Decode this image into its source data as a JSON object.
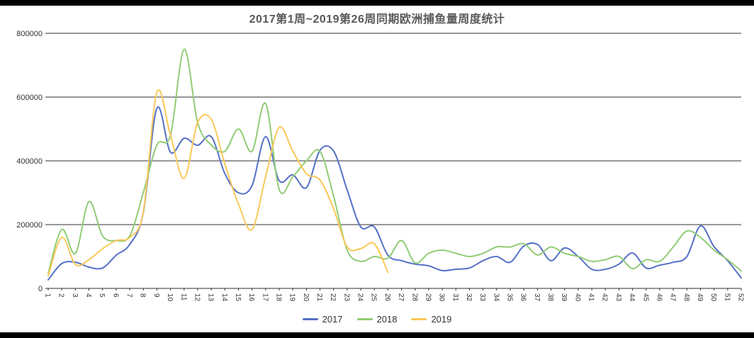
{
  "page": {
    "background": "#ffffff",
    "frame_color": "#000000"
  },
  "chart_data": {
    "type": "line",
    "title": "2017第1周~2019第26周同期欧洲捕鱼量周度统计",
    "title_color": "#595959",
    "text_color": "#333333",
    "grid_color": "#2f2f2f",
    "grid": true,
    "smooth": true,
    "legend_position": "bottom",
    "x_label_rotation": 90,
    "xlabel": "",
    "ylabel": "",
    "ylim": [
      0,
      800000
    ],
    "y_ticks": [
      0,
      200000,
      400000,
      600000,
      800000
    ],
    "categories": [
      "1",
      "2",
      "3",
      "4",
      "5",
      "6",
      "7",
      "8",
      "9",
      "10",
      "11",
      "12",
      "13",
      "14",
      "15",
      "16",
      "17",
      "18",
      "19",
      "20",
      "21",
      "22",
      "23",
      "24",
      "25",
      "26",
      "27",
      "28",
      "29",
      "30",
      "31",
      "32",
      "33",
      "34",
      "35",
      "36",
      "37",
      "38",
      "39",
      "40",
      "41",
      "42",
      "43",
      "44",
      "45",
      "46",
      "47",
      "48",
      "49",
      "50",
      "51",
      "52"
    ],
    "series": [
      {
        "name": "2017",
        "color": "#5470C6",
        "values": [
          27000,
          78000,
          82000,
          67000,
          64000,
          104000,
          138000,
          238000,
          565000,
          427000,
          471000,
          449000,
          476000,
          360000,
          300000,
          322000,
          476000,
          338000,
          356000,
          316000,
          433000,
          431000,
          309000,
          193000,
          193000,
          104000,
          87000,
          76000,
          71000,
          56000,
          60000,
          64000,
          87000,
          100000,
          82000,
          133000,
          138000,
          87000,
          127000,
          100000,
          60000,
          60000,
          76000,
          111000,
          64000,
          73000,
          82000,
          100000,
          196000,
          131000,
          87000,
          33000
        ]
      },
      {
        "name": "2018",
        "color": "#91CC75",
        "values": [
          48000,
          185000,
          110000,
          272000,
          165000,
          150000,
          165000,
          300000,
          450000,
          480000,
          750000,
          520000,
          450000,
          430000,
          500000,
          430000,
          580000,
          310000,
          350000,
          400000,
          430000,
          290000,
          120000,
          85000,
          100000,
          95000,
          150000,
          80000,
          110000,
          120000,
          110000,
          100000,
          110000,
          130000,
          130000,
          140000,
          105000,
          130000,
          110000,
          100000,
          85000,
          90000,
          100000,
          62000,
          90000,
          85000,
          130000,
          180000,
          160000,
          120000,
          90000,
          55000
        ]
      },
      {
        "name": "2019",
        "color": "#FAC858",
        "values": [
          40000,
          160000,
          75000,
          90000,
          125000,
          150000,
          160000,
          240000,
          615000,
          480000,
          345000,
          520000,
          530000,
          390000,
          265000,
          185000,
          350000,
          505000,
          430000,
          360000,
          340000,
          250000,
          130000,
          125000,
          140000,
          50000
        ]
      }
    ]
  }
}
